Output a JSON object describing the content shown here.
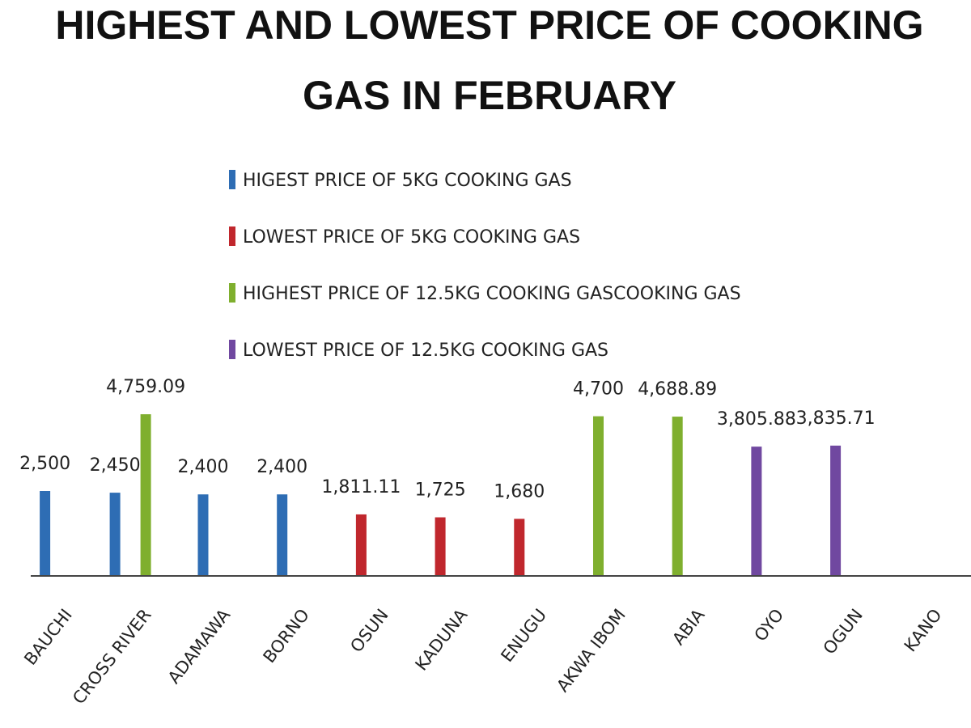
{
  "chart_data": {
    "type": "bar",
    "title_lines": [
      "HIGHEST AND LOWEST PRICE OF COOKING",
      "GAS IN FEBRUARY"
    ],
    "categories": [
      "BAUCHI",
      "CROSS RIVER",
      "ADAMAWA",
      "BORNO",
      "OSUN",
      "KADUNA",
      "ENUGU",
      "AKWA IBOM",
      "ABIA",
      "OYO",
      "OGUN",
      "KANO"
    ],
    "series": [
      {
        "name": "HIGEST PRICE OF 5KG COOKING GAS",
        "color": "#2E6DB4",
        "values": [
          2500,
          2450,
          2400,
          2400,
          null,
          null,
          null,
          null,
          null,
          null,
          null,
          null
        ],
        "labels": [
          "2,500",
          "2,450",
          "2,400",
          "2,400",
          null,
          null,
          null,
          null,
          null,
          null,
          null,
          null
        ]
      },
      {
        "name": "LOWEST PRICE OF 5KG COOKING GAS",
        "color": "#C0272D",
        "values": [
          null,
          null,
          null,
          null,
          1811.11,
          1725,
          1680,
          null,
          null,
          null,
          null,
          null
        ],
        "labels": [
          null,
          null,
          null,
          null,
          "1,811.11",
          "1,725",
          "1,680",
          null,
          null,
          null,
          null,
          null
        ]
      },
      {
        "name": "HIGHEST PRICE OF 12.5KG COOKING GASCOOKING GAS",
        "color": "#7FAF2E",
        "values": [
          null,
          4759.09,
          null,
          null,
          null,
          null,
          null,
          4700,
          4688.89,
          null,
          null,
          null
        ],
        "labels": [
          null,
          "4,759.09",
          null,
          null,
          null,
          null,
          null,
          "4,700",
          "4,688.89",
          null,
          null,
          null
        ]
      },
      {
        "name": "LOWEST PRICE OF 12.5KG COOKING GAS",
        "color": "#7048A0",
        "values": [
          null,
          null,
          null,
          null,
          null,
          null,
          null,
          null,
          null,
          3805.88,
          3835.71,
          null
        ],
        "labels": [
          null,
          null,
          null,
          null,
          null,
          null,
          null,
          null,
          null,
          "3,805.88",
          "3,835.71",
          null
        ]
      }
    ],
    "ylim": [
      0,
      5000
    ],
    "axis_color": "#444444",
    "grid": false,
    "legend_position": "top-center"
  }
}
